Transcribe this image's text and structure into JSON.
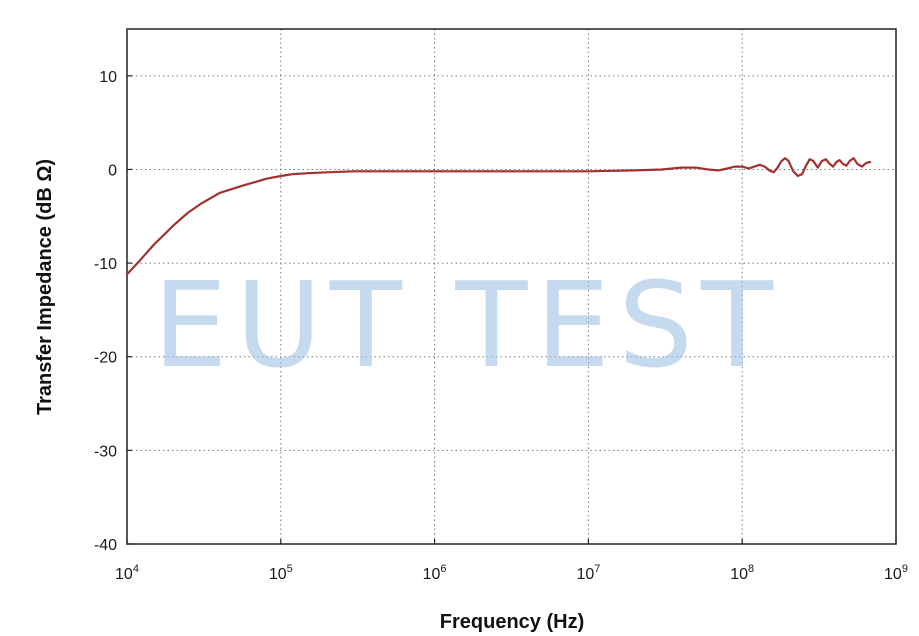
{
  "chart_data": {
    "type": "line",
    "xscale": "log",
    "xlabel": "Frequency (Hz)",
    "ylabel": "Transfer Impedance (dB Ω)",
    "xlim": [
      10000,
      1000000000
    ],
    "ylim": [
      -40,
      15
    ],
    "x_ticks": [
      {
        "value": 10000,
        "base": "10",
        "exp": "4"
      },
      {
        "value": 100000,
        "base": "10",
        "exp": "5"
      },
      {
        "value": 1000000,
        "base": "10",
        "exp": "6"
      },
      {
        "value": 10000000,
        "base": "10",
        "exp": "7"
      },
      {
        "value": 100000000,
        "base": "10",
        "exp": "8"
      },
      {
        "value": 1000000000,
        "base": "10",
        "exp": "9"
      }
    ],
    "y_ticks": [
      {
        "value": 10,
        "label": "10"
      },
      {
        "value": 0,
        "label": "0"
      },
      {
        "value": -10,
        "label": "-10"
      },
      {
        "value": -20,
        "label": "-20"
      },
      {
        "value": -30,
        "label": "-30"
      },
      {
        "value": -40,
        "label": "-40"
      }
    ],
    "grid": true,
    "grid_style": "dotted",
    "line_color": "#a0322e",
    "series": [
      {
        "x": [
          10000,
          12000,
          15000,
          20000,
          25000,
          30000,
          40000,
          50000,
          60000,
          70000,
          80000,
          100000,
          120000,
          150000,
          200000,
          300000,
          500000,
          1000000,
          3000000,
          10000000,
          20000000,
          30000000,
          40000000,
          50000000,
          60000000,
          70000000,
          80000000,
          90000000,
          100000000,
          110000000,
          120000000,
          130000000,
          140000000,
          150000000,
          160000000,
          170000000,
          180000000,
          190000000,
          200000000,
          215000000,
          230000000,
          245000000,
          260000000,
          275000000,
          290000000,
          310000000,
          330000000,
          350000000,
          370000000,
          390000000,
          410000000,
          430000000,
          450000000,
          475000000,
          500000000,
          530000000,
          560000000,
          600000000,
          640000000,
          680000000
        ],
        "y": [
          -11.2,
          -9.8,
          -8.0,
          -6.0,
          -4.6,
          -3.7,
          -2.5,
          -2.0,
          -1.6,
          -1.3,
          -1.0,
          -0.7,
          -0.5,
          -0.4,
          -0.3,
          -0.2,
          -0.2,
          -0.2,
          -0.2,
          -0.2,
          -0.1,
          0.0,
          0.2,
          0.2,
          0.0,
          -0.1,
          0.1,
          0.3,
          0.3,
          0.1,
          0.3,
          0.5,
          0.3,
          -0.1,
          -0.3,
          0.2,
          0.9,
          1.2,
          0.9,
          -0.2,
          -0.7,
          -0.5,
          0.4,
          1.1,
          0.9,
          0.2,
          0.9,
          1.1,
          0.6,
          0.3,
          0.8,
          1.0,
          0.6,
          0.4,
          0.9,
          1.2,
          0.6,
          0.3,
          0.7,
          0.8
        ]
      }
    ]
  },
  "watermark": "EUT TEST"
}
